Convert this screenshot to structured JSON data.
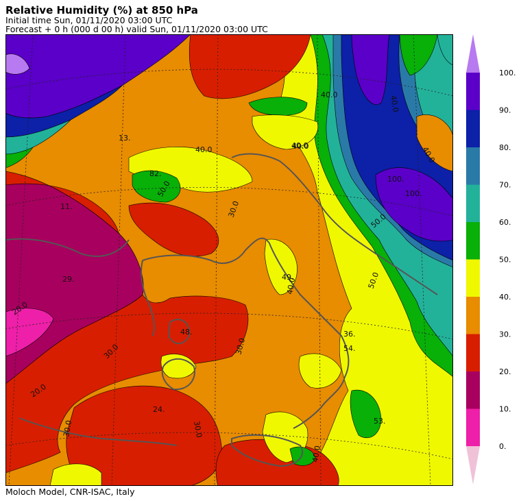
{
  "header": {
    "title": "Relative Humidity (%) at 850 hPa",
    "initial_time": "Initial time  Sun, 01/11/2020  03:00 UTC",
    "forecast": "Forecast  +   0 h  (000 d 00 h)  valid Sun, 01/11/2020 03:00 UTC"
  },
  "footer": {
    "credit": "Moloch Model, CNR-ISAC, Italy"
  },
  "legend": {
    "ticks": [
      "100.",
      "90.",
      "80.",
      "70.",
      "60.",
      "50.",
      "40.",
      "30.",
      "20.",
      "10.",
      "0."
    ],
    "bins": [
      {
        "from": 90,
        "to": 100,
        "color": "#5a00c8"
      },
      {
        "from": 80,
        "to": 90,
        "color": "#0c20a8"
      },
      {
        "from": 70,
        "to": 80,
        "color": "#2a7aa8"
      },
      {
        "from": 60,
        "to": 70,
        "color": "#22b29a"
      },
      {
        "from": 50,
        "to": 60,
        "color": "#08b008"
      },
      {
        "from": 40,
        "to": 50,
        "color": "#f0f800"
      },
      {
        "from": 30,
        "to": 40,
        "color": "#e88c00"
      },
      {
        "from": 20,
        "to": 30,
        "color": "#d81e00"
      },
      {
        "from": 10,
        "to": 20,
        "color": "#a8005e"
      },
      {
        "from": 0,
        "to": 10,
        "color": "#ee1fa8"
      }
    ],
    "over_color": "#b77af0",
    "under_color": "#f0c2d8"
  },
  "map": {
    "contour_labels": [
      {
        "text": "40.0"
      },
      {
        "text": "40.0"
      },
      {
        "text": "40.0"
      },
      {
        "text": "40.0"
      },
      {
        "text": "50.0"
      },
      {
        "text": "30.0"
      },
      {
        "text": "30.0"
      },
      {
        "text": "30.0"
      },
      {
        "text": "30.0"
      },
      {
        "text": "30.0"
      },
      {
        "text": "20.0"
      },
      {
        "text": "20.0"
      },
      {
        "text": "40.0"
      },
      {
        "text": "50.0"
      },
      {
        "text": "50.0"
      },
      {
        "text": "40.0"
      },
      {
        "text": "40.0"
      },
      {
        "text": "40.0"
      }
    ],
    "value_labels": [
      {
        "text": "11."
      },
      {
        "text": "29."
      },
      {
        "text": "48."
      },
      {
        "text": "24."
      },
      {
        "text": "49."
      },
      {
        "text": "36."
      },
      {
        "text": "54."
      },
      {
        "text": "53."
      },
      {
        "text": "100."
      },
      {
        "text": "100."
      },
      {
        "text": "13."
      },
      {
        "text": "82."
      }
    ]
  }
}
